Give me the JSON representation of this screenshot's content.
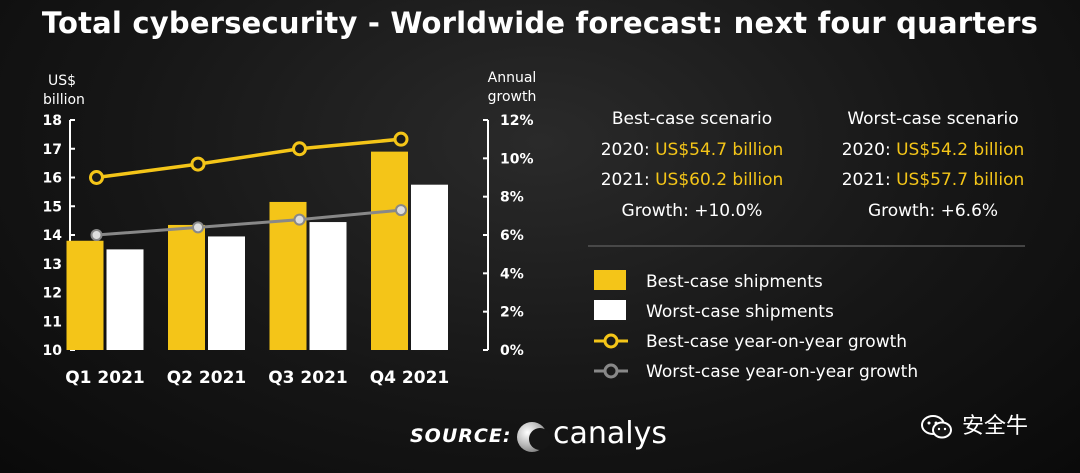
{
  "title": "Total cybersecurity - Worldwide forecast: next four quarters",
  "chart_data": {
    "type": "bar",
    "categories": [
      "Q1 2021",
      "Q2 2021",
      "Q3 2021",
      "Q4 2021"
    ],
    "left_axis": {
      "label_line1": "US$",
      "label_line2": "billion",
      "ylim": [
        10,
        18
      ],
      "ticks": [
        "10",
        "11",
        "12",
        "13",
        "14",
        "15",
        "16",
        "17",
        "18"
      ]
    },
    "right_axis": {
      "label_line1": "Annual",
      "label_line2": "growth",
      "ylim": [
        0,
        12
      ],
      "ticks": [
        "0%",
        "2%",
        "4%",
        "6%",
        "8%",
        "10%",
        "12%"
      ]
    },
    "series": [
      {
        "name": "Best-case shipments",
        "kind": "bar",
        "axis": "left",
        "color": "#f4c518",
        "values": [
          13.8,
          14.35,
          15.15,
          16.9
        ]
      },
      {
        "name": "Worst-case shipments",
        "kind": "bar",
        "axis": "left",
        "color": "#ffffff",
        "values": [
          13.5,
          13.95,
          14.45,
          15.75
        ]
      },
      {
        "name": "Best-case year-on-year growth",
        "kind": "line",
        "axis": "right",
        "color": "#f4c518",
        "values": [
          9.0,
          9.7,
          10.5,
          11.0
        ]
      },
      {
        "name": "Worst-case year-on-year growth",
        "kind": "line",
        "axis": "right",
        "color": "#888888",
        "values": [
          6.0,
          6.4,
          6.8,
          7.3
        ]
      }
    ],
    "grid": false,
    "legend_position": "right"
  },
  "scenarios": [
    {
      "heading": "Best-case scenario",
      "y2020_label": "2020: ",
      "y2020_value": "US$54.7 billion",
      "y2021_label": "2021: ",
      "y2021_value": "US$60.2 billion",
      "growth": "Growth: +10.0%"
    },
    {
      "heading": "Worst-case scenario",
      "y2020_label": "2020: ",
      "y2020_value": "US$54.2 billion",
      "y2021_label": "2021: ",
      "y2021_value": "US$57.7 billion",
      "growth": "Growth: +6.6%"
    }
  ],
  "source_label": "SOURCE:",
  "logo_text": "canalys",
  "watermark": "安全牛"
}
